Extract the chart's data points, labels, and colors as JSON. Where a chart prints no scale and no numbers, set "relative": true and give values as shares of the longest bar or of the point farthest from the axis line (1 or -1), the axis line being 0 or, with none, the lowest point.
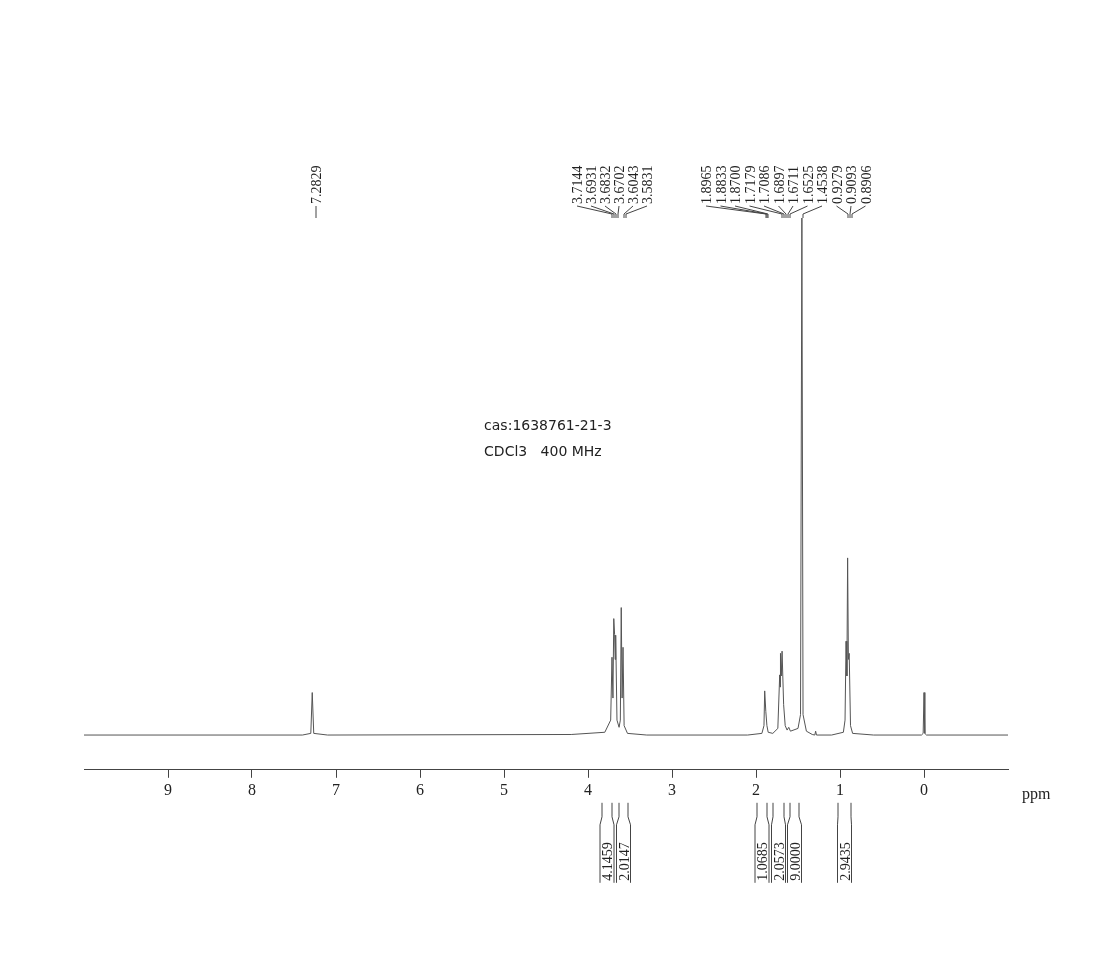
{
  "chart_data": {
    "type": "line",
    "relative": true,
    "xlabel": "ppm",
    "xlim": [
      10,
      -1
    ],
    "xticks": [
      9,
      8,
      7,
      6,
      5,
      4,
      3,
      2,
      1,
      0
    ],
    "grid": false,
    "legend": false,
    "marker": "none",
    "line_style": "solid",
    "series": [
      {
        "color": "#555555",
        "x": [
          10,
          7.4,
          7.3,
          7.2829,
          7.265,
          7.1,
          4.2,
          3.8,
          3.73,
          3.7144,
          3.703,
          3.6931,
          3.6832,
          3.677,
          3.6702,
          3.655,
          3.63,
          3.615,
          3.6043,
          3.594,
          3.5831,
          3.57,
          3.53,
          3.3,
          2.1,
          1.93,
          1.905,
          1.8965,
          1.8833,
          1.87,
          1.855,
          1.8,
          1.74,
          1.7179,
          1.713,
          1.7086,
          1.699,
          1.6897,
          1.6711,
          1.6525,
          1.63,
          1.61,
          1.59,
          1.5,
          1.47,
          1.4538,
          1.44,
          1.4,
          1.33,
          1.3,
          1.29,
          1.28,
          1.1,
          0.96,
          0.94,
          0.9279,
          0.918,
          0.9093,
          0.9,
          0.8906,
          0.875,
          0.85,
          0.6,
          0.03,
          0.01,
          0,
          -0.01,
          -0.03,
          -1
        ],
        "values": [
          0.063,
          0.063,
          0.066,
          0.14,
          0.066,
          0.063,
          0.064,
          0.068,
          0.09,
          0.204,
          0.13,
          0.274,
          0.245,
          0.2,
          0.244,
          0.09,
          0.077,
          0.09,
          0.294,
          0.13,
          0.222,
          0.08,
          0.066,
          0.063,
          0.063,
          0.066,
          0.08,
          0.143,
          0.106,
          0.08,
          0.068,
          0.066,
          0.075,
          0.172,
          0.15,
          0.211,
          0.17,
          0.215,
          0.118,
          0.08,
          0.072,
          0.077,
          0.07,
          0.075,
          0.1,
          1.0,
          0.1,
          0.07,
          0.064,
          0.063,
          0.07,
          0.063,
          0.063,
          0.068,
          0.09,
          0.233,
          0.17,
          0.384,
          0.2,
          0.211,
          0.08,
          0.066,
          0.063,
          0.063,
          0.066,
          0.14,
          0.066,
          0.063,
          0.063
        ]
      }
    ],
    "annotations": [
      "cas:1638761-21-3",
      "CDCl3   400 MHz",
      "7.2829",
      "3.7144",
      "3.6931",
      "3.6832",
      "3.6702",
      "3.6043",
      "3.5831",
      "1.8965",
      "1.8833",
      "1.8700",
      "1.7179",
      "1.7086",
      "1.6897",
      "1.6711",
      "1.6525",
      "1.4538",
      "0.9279",
      "0.9093",
      "0.8906",
      "4.1459",
      "2.0147",
      "1.0685",
      "2.0573",
      "9.0000",
      "2.9435"
    ]
  }
}
